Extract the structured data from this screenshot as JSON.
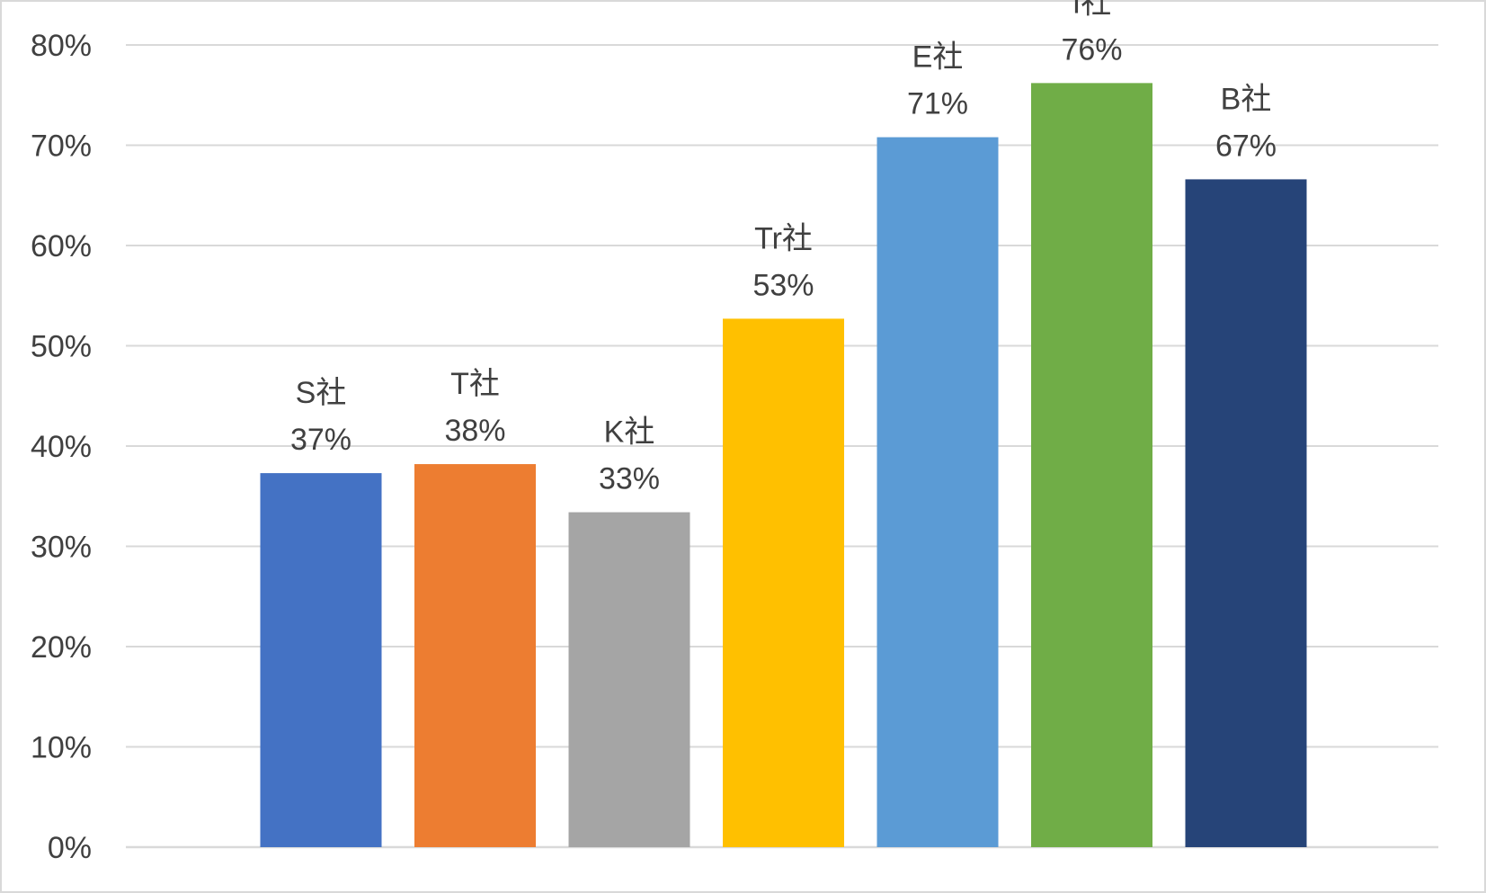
{
  "chart_data": {
    "type": "bar",
    "title": "",
    "xlabel": "",
    "ylabel": "",
    "ylim": [
      0,
      0.8
    ],
    "yticks": [
      "0%",
      "10%",
      "20%",
      "30%",
      "40%",
      "50%",
      "60%",
      "70%",
      "80%"
    ],
    "categories": [
      "S社",
      "T社",
      "K社",
      "Tr社",
      "E社",
      "I社",
      "B社"
    ],
    "values": [
      0.373,
      0.382,
      0.334,
      0.527,
      0.708,
      0.762,
      0.666
    ],
    "value_labels": [
      "37%",
      "38%",
      "33%",
      "53%",
      "71%",
      "76%",
      "67%"
    ],
    "colors": [
      "#4472c4",
      "#ed7d31",
      "#a5a5a5",
      "#ffc000",
      "#5b9bd5",
      "#70ad47",
      "#264478"
    ],
    "grid": true,
    "gridline_color": "#d9d9d9",
    "legend": "none"
  }
}
